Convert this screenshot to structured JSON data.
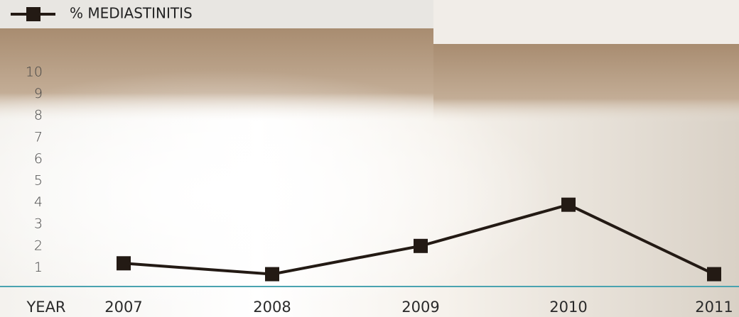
{
  "chart_data": {
    "type": "line",
    "x_label": "YEAR",
    "categories": [
      "2007",
      "2008",
      "2009",
      "2010",
      "2011"
    ],
    "series": [
      {
        "name": "% MEDIASTINITIS",
        "color": "#231a14",
        "values": [
          1.2,
          0.7,
          2,
          3.9,
          0.7
        ]
      }
    ],
    "ylim": [
      0,
      10
    ],
    "yticks": [
      1,
      2,
      3,
      4,
      5,
      6,
      7,
      8,
      9,
      10
    ],
    "legend": "top-left"
  }
}
